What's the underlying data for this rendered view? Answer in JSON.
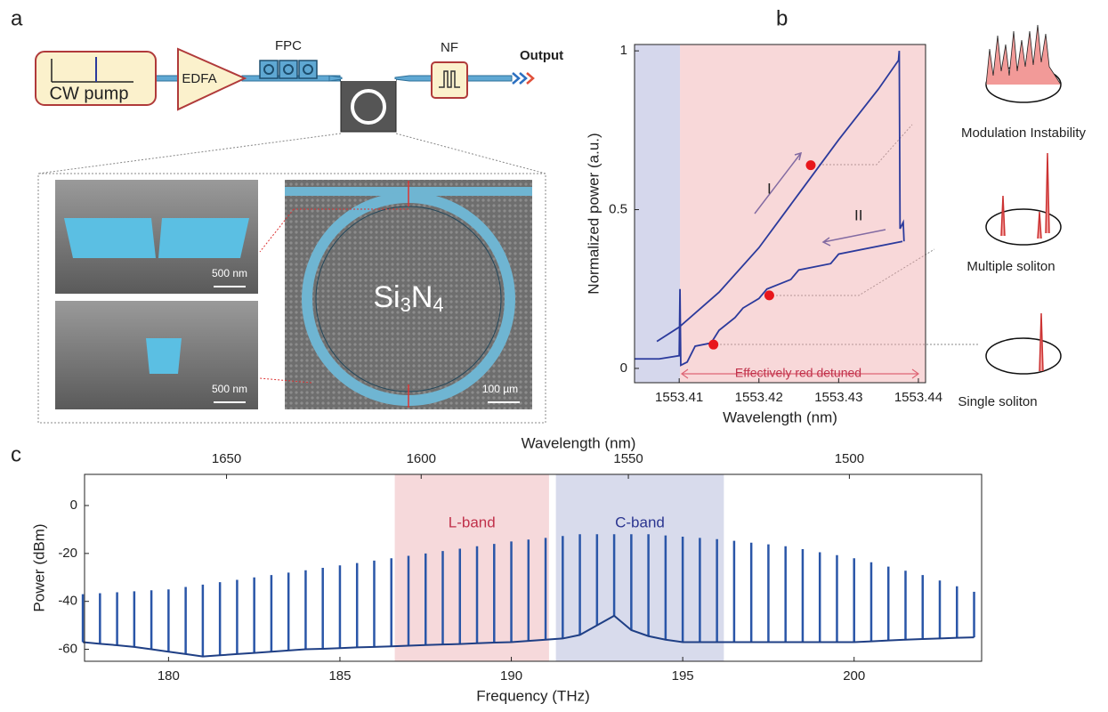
{
  "panel_labels": [
    "a",
    "b",
    "c"
  ],
  "diagram": {
    "pump": "CW pump",
    "amplifier": "EDFA",
    "controller": "FPC",
    "filter": "NF",
    "output": "Output",
    "material": [
      "Si",
      "3",
      "N",
      "4"
    ],
    "scale_bars": [
      "500 nm",
      "500 nm",
      "100 µm"
    ]
  },
  "chart_data": [
    {
      "type": "line",
      "xlabel": "Wavelength (nm)",
      "ylabel": "Normalized  power (a.u.)",
      "xlim": [
        1553.4044,
        1553.4409
      ],
      "ylim": [
        -0.045,
        1.02
      ],
      "xticks": [
        1553.41,
        1553.42,
        1553.43,
        1553.44
      ],
      "yticks": [
        0,
        0.5,
        1
      ],
      "regions": [
        {
          "x": [
            1553.4044,
            1553.4101
          ],
          "color": "#b9bde0"
        },
        {
          "x": [
            1553.4101,
            1553.4409
          ],
          "color": "#f0a8ab"
        }
      ],
      "series": [
        {
          "color": "#2b3a9c",
          "x": [
            1553.4072,
            1553.41,
            1553.415,
            1553.42,
            1553.425,
            1553.43,
            1553.435,
            1553.4375,
            1553.4376,
            1553.4377,
            1553.4381,
            1553.4382
          ],
          "values": [
            0.085,
            0.13,
            0.24,
            0.38,
            0.55,
            0.72,
            0.88,
            0.97,
            1.0,
            0.44,
            0.46,
            0.4
          ]
        },
        {
          "color": "#2b3a9c",
          "x": [
            1553.438,
            1553.43,
            1553.429,
            1553.425,
            1553.424,
            1553.421,
            1553.42,
            1553.418,
            1553.417,
            1553.415,
            1553.414,
            1553.412,
            1553.411,
            1553.4102,
            1553.4101,
            1553.41,
            1553.4075,
            1553.4044
          ],
          "values": [
            0.4,
            0.36,
            0.33,
            0.31,
            0.28,
            0.25,
            0.22,
            0.19,
            0.16,
            0.12,
            0.08,
            0.07,
            0.02,
            0.01,
            0.25,
            0.04,
            0.03,
            0.03
          ]
        },
        {
          "type": "scatter",
          "color": "#e8161b",
          "x": [
            1553.4265,
            1553.4213,
            1553.4143
          ],
          "values": [
            0.64,
            0.23,
            0.075
          ]
        }
      ],
      "annotations": [
        "I",
        "II",
        "Effectively red detuned"
      ],
      "insets": [
        "Modulation Instability",
        "Multiple soliton",
        "Single soliton"
      ]
    },
    {
      "type": "comb",
      "xlabel": "Frequency (THz)",
      "ylabel": "Power (dBm)",
      "x2label": "Wavelength (nm)",
      "xlim": [
        177.55,
        203.72
      ],
      "ylim": [
        -65,
        13
      ],
      "xticks": [
        180,
        185,
        190,
        195,
        200
      ],
      "yticks": [
        0,
        -20,
        -40,
        -60
      ],
      "x2ticks": [
        1650,
        1600,
        1550,
        1500
      ],
      "bands": [
        {
          "name": "L-band",
          "x": [
            186.6,
            191.1
          ],
          "color": "#f6d9db",
          "text_color": "#c0304a"
        },
        {
          "name": "C-band",
          "x": [
            191.3,
            196.2
          ],
          "color": "#d8dbec",
          "text_color": "#2b3590"
        }
      ],
      "x": [
        177.5,
        178,
        178.5,
        179,
        179.5,
        180,
        180.5,
        181,
        181.5,
        182,
        182.5,
        183,
        183.5,
        184,
        184.5,
        185,
        185.5,
        186,
        186.5,
        187,
        187.5,
        188,
        188.5,
        189,
        189.5,
        190,
        190.5,
        191,
        191.5,
        192,
        192.5,
        193,
        193.5,
        194,
        194.5,
        195,
        195.5,
        196,
        196.5,
        197,
        197.5,
        198,
        198.5,
        199,
        199.5,
        200,
        200.5,
        201,
        201.5,
        202,
        202.5,
        203,
        203.5
      ],
      "series": [
        {
          "color": "#2a56a8",
          "values": [
            -37,
            -36.6,
            -36.2,
            -35.8,
            -35.4,
            -35,
            -34,
            -33,
            -32,
            -31,
            -30,
            -29,
            -28,
            -27,
            -26,
            -25,
            -24,
            -23,
            -22,
            -21,
            -20,
            -19,
            -18,
            -17,
            -16,
            -15,
            -14.2,
            -13.5,
            -12.7,
            -12,
            -12,
            -12,
            -12,
            -12,
            -12.5,
            -13,
            -13.5,
            -14,
            -14.7,
            -15.5,
            -16.2,
            -17,
            -18.2,
            -19.5,
            -20.7,
            -22,
            -23.7,
            -25.5,
            -27.2,
            -29,
            -31.3,
            -33.7,
            -36
          ]
        },
        {
          "color": "#1f3f85",
          "values": [
            -57,
            -57.7,
            -58.3,
            -59,
            -60,
            -61,
            -62,
            -63,
            -62.5,
            -62,
            -61.5,
            -61,
            -60.5,
            -60,
            -59.8,
            -59.5,
            -59.2,
            -59,
            -58.8,
            -58.5,
            -58.2,
            -58,
            -57.8,
            -57.5,
            -57.2,
            -57,
            -56.5,
            -56,
            -55.5,
            -54,
            -50,
            -46,
            -52,
            -54.5,
            -56,
            -57,
            -57,
            -57,
            -57,
            -57,
            -57,
            -57,
            -57,
            -57,
            -57,
            -57,
            -56.7,
            -56.3,
            -56,
            -55.7,
            -55.5,
            -55.2,
            -55
          ]
        }
      ]
    }
  ]
}
